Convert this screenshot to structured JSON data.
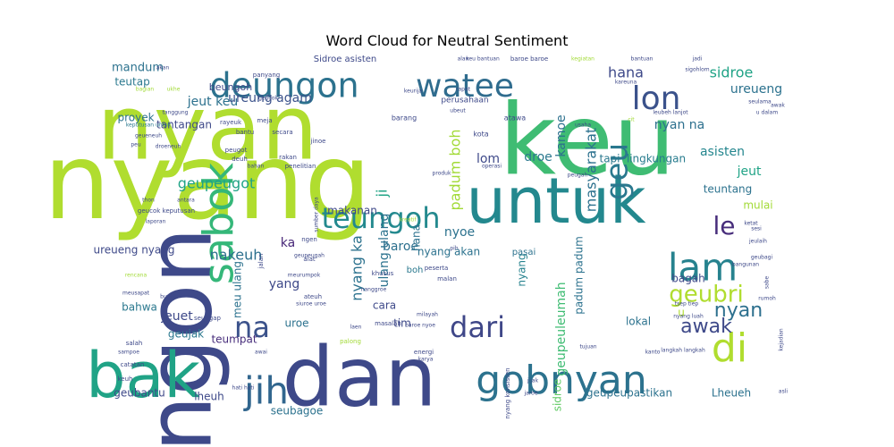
{
  "title": "Word Cloud for Neutral Sentiment",
  "palette": [
    "#440154",
    "#472c7a",
    "#3b518b",
    "#2c718e",
    "#21908d",
    "#27ad81",
    "#5cc863",
    "#aadc32",
    "#fde725"
  ],
  "words": [
    {
      "text": "nyang",
      "color": "#b0dd2f"
    },
    {
      "text": "nyan",
      "color": "#b0dd2f"
    },
    {
      "text": "keu",
      "color": "#3fbc73"
    },
    {
      "text": "ngon",
      "color": "#3e4989"
    },
    {
      "text": "dan",
      "color": "#3e4989"
    },
    {
      "text": "untuk",
      "color": "#23888e"
    },
    {
      "text": "bak",
      "color": "#20a386"
    },
    {
      "text": "sabok",
      "color": "#35b779"
    },
    {
      "text": "deungon",
      "color": "#2c728e"
    },
    {
      "text": "watee",
      "color": "#2f6c8e"
    },
    {
      "text": "lon",
      "color": "#3b528b"
    },
    {
      "text": "jih",
      "color": "#31668e"
    },
    {
      "text": "gobnyan",
      "color": "#2c728e"
    },
    {
      "text": "lam",
      "color": "#26828e"
    },
    {
      "text": "di",
      "color": "#b0dd2f"
    },
    {
      "text": "dari",
      "color": "#3f4788"
    },
    {
      "text": "teungoh",
      "color": "#23898e"
    },
    {
      "text": "geu",
      "color": "#2a788e"
    },
    {
      "text": "na",
      "color": "#3b528b"
    },
    {
      "text": "le",
      "color": "#472d7b"
    },
    {
      "text": "geubri",
      "color": "#b0dd2f"
    },
    {
      "text": "awak",
      "color": "#3e4989"
    },
    {
      "text": "nyan",
      "color": "#2d708e"
    },
    {
      "text": "sidroe",
      "color": "#20a386"
    },
    {
      "text": "ureueng",
      "color": "#2c728e"
    },
    {
      "text": "hana",
      "color": "#3e4989"
    },
    {
      "text": "jeut keu",
      "color": "#2c718e"
    },
    {
      "text": "ureung agam",
      "color": "#3b528b"
    },
    {
      "text": "geupeugot",
      "color": "#20a386"
    },
    {
      "text": "nakeuh",
      "color": "#2d708e"
    },
    {
      "text": "ka",
      "color": "#482878"
    },
    {
      "text": "nyang ka",
      "color": "#2c728e"
    },
    {
      "text": "ulang ulang",
      "color": "#2c728e"
    },
    {
      "text": "padum boh",
      "color": "#a2da37"
    },
    {
      "text": "lom",
      "color": "#3e4989"
    },
    {
      "text": "droe",
      "color": "#2a788e"
    },
    {
      "text": "kamoe",
      "color": "#2c718e"
    },
    {
      "text": "masyarakat",
      "color": "#2c718e"
    },
    {
      "text": "nyan na",
      "color": "#2d708e"
    },
    {
      "text": "tapi",
      "color": "#2a788e"
    },
    {
      "text": "lingkungan",
      "color": "#287c8e"
    },
    {
      "text": "asisten",
      "color": "#24868e"
    },
    {
      "text": "jeut",
      "color": "#20a386"
    },
    {
      "text": "teuntang",
      "color": "#2c728e"
    },
    {
      "text": "mulai",
      "color": "#a2da37"
    },
    {
      "text": "mandum",
      "color": "#2c728e"
    },
    {
      "text": "teutap",
      "color": "#2a788e"
    },
    {
      "text": "proyek",
      "color": "#2c728e"
    },
    {
      "text": "tantangan",
      "color": "#3e4989"
    },
    {
      "text": "beungoh",
      "color": "#3e4989"
    },
    {
      "text": "nyoe",
      "color": "#2c728e"
    },
    {
      "text": "nyang akan",
      "color": "#2c728e"
    },
    {
      "text": "makanan",
      "color": "#3e4989"
    },
    {
      "text": "baroe",
      "color": "#2d708e"
    },
    {
      "text": "ji",
      "color": "#20a386"
    },
    {
      "text": "hana",
      "color": "#2c728e"
    },
    {
      "text": "nyang",
      "color": "#26828e"
    },
    {
      "text": "yang",
      "color": "#3e4989"
    },
    {
      "text": "meu ulang",
      "color": "#2c728e"
    },
    {
      "text": "ureueng nyang",
      "color": "#3e4989"
    },
    {
      "text": "bahwa",
      "color": "#2a788e"
    },
    {
      "text": "jeuet",
      "color": "#3e4989"
    },
    {
      "text": "uroe",
      "color": "#2c728e"
    },
    {
      "text": "geujak",
      "color": "#2a788e"
    },
    {
      "text": "teumpat",
      "color": "#472d7b"
    },
    {
      "text": "cara",
      "color": "#3e4989"
    },
    {
      "text": "tim",
      "color": "#3e4989"
    },
    {
      "text": "boh",
      "color": "#2a788e"
    },
    {
      "text": "padum padum",
      "color": "#2c728e"
    },
    {
      "text": "geupeuleumah",
      "color": "#3fbc73"
    },
    {
      "text": "sidroe",
      "color": "#5ec962"
    },
    {
      "text": "bagah",
      "color": "#3e4989"
    },
    {
      "text": "lokal",
      "color": "#2c728e"
    },
    {
      "text": "u",
      "color": "#b0dd2f"
    },
    {
      "text": "geubantu",
      "color": "#3e4989"
    },
    {
      "text": "lheuh",
      "color": "#3e4989"
    },
    {
      "text": "seubagoe",
      "color": "#2c728e"
    },
    {
      "text": "geupeupastikan",
      "color": "#2c728e"
    },
    {
      "text": "Lheueh",
      "color": "#2c728e"
    },
    {
      "text": "pasai",
      "color": "#2c728e"
    },
    {
      "text": "Sidroe asisten",
      "color": "#3e4989"
    },
    {
      "text": "perusahaan",
      "color": "#3e4989"
    },
    {
      "text": "barang",
      "color": "#3e4989"
    },
    {
      "text": "kota",
      "color": "#3e4989"
    },
    {
      "text": "atawa",
      "color": "#3e4989"
    },
    {
      "text": "rayeuk",
      "color": "#3e4989"
    },
    {
      "text": "meja",
      "color": "#3e4989"
    },
    {
      "text": "bantu",
      "color": "#3e4989"
    },
    {
      "text": "secara",
      "color": "#3e4989"
    },
    {
      "text": "jinoe",
      "color": "#3e4989"
    },
    {
      "text": "geueneuh",
      "color": "#3e4989"
    },
    {
      "text": "keputusan untuk",
      "color": "#2a788e"
    },
    {
      "text": "bagian",
      "color": "#a2da37"
    },
    {
      "text": "akan",
      "color": "#3e4989"
    },
    {
      "text": "ukhe",
      "color": "#a2da37"
    },
    {
      "text": "tanggung",
      "color": "#3e4989"
    },
    {
      "text": "geucok keputusan",
      "color": "#3e4989"
    },
    {
      "text": "laporan",
      "color": "#3e4989"
    },
    {
      "text": "antara",
      "color": "#3e4989"
    },
    {
      "text": "thon",
      "color": "#3e4989"
    },
    {
      "text": "peu",
      "color": "#3e4989"
    },
    {
      "text": "droeneuh",
      "color": "#3e4989"
    },
    {
      "text": "deuh",
      "color": "#3e4989"
    },
    {
      "text": "bahan",
      "color": "#3e4989"
    },
    {
      "text": "rakan",
      "color": "#3e4989"
    },
    {
      "text": "penelitian",
      "color": "#3e4989"
    },
    {
      "text": "sumber daya",
      "color": "#3e4989"
    },
    {
      "text": "ngen",
      "color": "#3e4989"
    },
    {
      "text": "alat",
      "color": "#3e4989"
    },
    {
      "text": "meurumpok",
      "color": "#3e4989"
    },
    {
      "text": "geupeugah",
      "color": "#3e4989"
    },
    {
      "text": "jalan",
      "color": "#3e4989"
    },
    {
      "text": "khusus",
      "color": "#3e4989"
    },
    {
      "text": "peserta",
      "color": "#3e4989"
    },
    {
      "text": "malan",
      "color": "#3e4989"
    },
    {
      "text": "nanggroe",
      "color": "#3e4989"
    },
    {
      "text": "ateuh",
      "color": "#3e4989"
    },
    {
      "text": "siuroe uroe",
      "color": "#3e4989"
    },
    {
      "text": "milayah",
      "color": "#3e4989"
    },
    {
      "text": "baroe nyoe",
      "color": "#3e4989"
    },
    {
      "text": "masalah",
      "color": "#3e4989"
    },
    {
      "text": "laen",
      "color": "#3e4989"
    },
    {
      "text": "seungap",
      "color": "#3e4989"
    },
    {
      "text": "meusapat",
      "color": "#3e4989"
    },
    {
      "text": "buet",
      "color": "#3e4989"
    },
    {
      "text": "rencana",
      "color": "#a2da37"
    },
    {
      "text": "salah",
      "color": "#3e4989"
    },
    {
      "text": "sampoe",
      "color": "#3e4989"
    },
    {
      "text": "catatan",
      "color": "#3e4989"
    },
    {
      "text": "keuh",
      "color": "#3e4989"
    },
    {
      "text": "hati hati",
      "color": "#3e4989"
    },
    {
      "text": "awai",
      "color": "#3e4989"
    },
    {
      "text": "palong",
      "color": "#a2da37"
    },
    {
      "text": "energi",
      "color": "#3e4989"
    },
    {
      "text": "karya",
      "color": "#3e4989"
    },
    {
      "text": "nyang konsisten",
      "color": "#3e4989"
    },
    {
      "text": "jijak",
      "color": "#3e4989"
    },
    {
      "text": "jaroe",
      "color": "#3e4989"
    },
    {
      "text": "tujuan",
      "color": "#3e4989"
    },
    {
      "text": "kanto",
      "color": "#3e4989"
    },
    {
      "text": "langkah langkah",
      "color": "#3e4989"
    },
    {
      "text": "nyang luah",
      "color": "#3e4989"
    },
    {
      "text": "tsep tiep",
      "color": "#3e4989"
    },
    {
      "text": "bangunan",
      "color": "#3e4989"
    },
    {
      "text": "ketat",
      "color": "#3e4989"
    },
    {
      "text": "sesi",
      "color": "#3e4989"
    },
    {
      "text": "jeulaih",
      "color": "#3e4989"
    },
    {
      "text": "geubagi",
      "color": "#3e4989"
    },
    {
      "text": "rumoh",
      "color": "#3e4989"
    },
    {
      "text": "sabe",
      "color": "#3e4989"
    },
    {
      "text": "kejadian",
      "color": "#3e4989"
    },
    {
      "text": "asli",
      "color": "#3e4989"
    },
    {
      "text": "keu bantuan",
      "color": "#3e4989"
    },
    {
      "text": "baroe baroe",
      "color": "#3e4989"
    },
    {
      "text": "kegiatan",
      "color": "#a2da37"
    },
    {
      "text": "bantuan",
      "color": "#3e4989"
    },
    {
      "text": "jadi",
      "color": "#3e4989"
    },
    {
      "text": "sigohlom",
      "color": "#3e4989"
    },
    {
      "text": "kareuna",
      "color": "#3e4989"
    },
    {
      "text": "seulama",
      "color": "#3e4989"
    },
    {
      "text": "awak",
      "color": "#3e4989"
    },
    {
      "text": "u dalam",
      "color": "#3e4989"
    },
    {
      "text": "leubeh lanjot",
      "color": "#3e4989"
    },
    {
      "text": "peugah",
      "color": "#3e4989"
    },
    {
      "text": "usaha",
      "color": "#3e4989"
    },
    {
      "text": "cit",
      "color": "#a2da37"
    },
    {
      "text": "operasi",
      "color": "#3e4989"
    },
    {
      "text": "produk",
      "color": "#3e4989"
    },
    {
      "text": "peugot",
      "color": "#3e4989"
    },
    {
      "text": "panyang",
      "color": "#3e4989"
    },
    {
      "text": "keurija",
      "color": "#3e4989"
    },
    {
      "text": "geucok",
      "color": "#3e4989"
    },
    {
      "text": "rapat",
      "color": "#3e4989"
    },
    {
      "text": "ubeut",
      "color": "#3e4989"
    },
    {
      "text": "alan",
      "color": "#3e4989"
    },
    {
      "text": "pih",
      "color": "#3e4989"
    },
    {
      "text": "kreatif",
      "color": "#a2da37"
    }
  ]
}
